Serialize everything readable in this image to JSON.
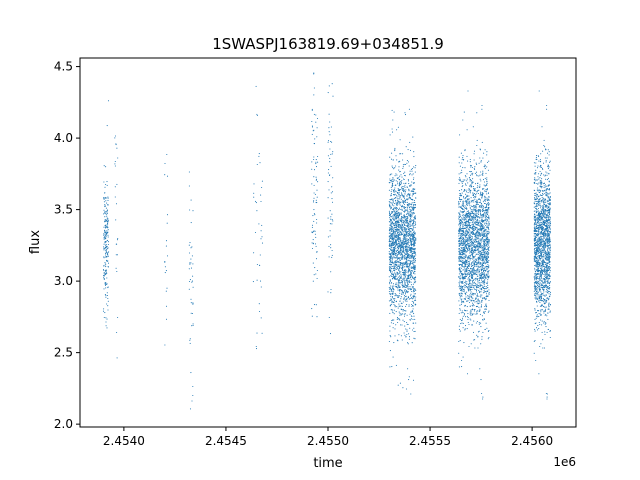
{
  "chart_data": {
    "type": "scatter",
    "title": "1SWASPJ163819.69+034851.9",
    "xlabel": "time",
    "ylabel": "flux",
    "x_offset_label": "1e6",
    "xlim": [
      2453785,
      2456215
    ],
    "ylim": [
      1.98,
      4.56
    ],
    "xticks": [
      2454000,
      2454500,
      2455000,
      2455500,
      2456000
    ],
    "xtick_labels": [
      "2.4540",
      "2.4545",
      "2.4550",
      "2.4555",
      "2.4560"
    ],
    "yticks": [
      2.0,
      2.5,
      3.0,
      3.5,
      4.0,
      4.5
    ],
    "ytick_labels": [
      "2.0",
      "2.5",
      "3.0",
      "3.5",
      "4.0",
      "4.5"
    ],
    "grid": false,
    "marker_color": "#1f77b4",
    "clusters": [
      {
        "x_start": 2453900,
        "x_end": 2453925,
        "y_center": 3.25,
        "y_spread": 0.22,
        "count": 220
      },
      {
        "x_start": 2453955,
        "x_end": 2453970,
        "y_center": 3.55,
        "y_spread": 0.45,
        "count": 25
      },
      {
        "x_start": 2454200,
        "x_end": 2454215,
        "y_center": 3.3,
        "y_spread": 0.45,
        "count": 20
      },
      {
        "x_start": 2454320,
        "x_end": 2454340,
        "y_center": 2.95,
        "y_spread": 0.35,
        "count": 45
      },
      {
        "x_start": 2454630,
        "x_end": 2454680,
        "y_center": 3.35,
        "y_spread": 0.45,
        "count": 40
      },
      {
        "x_start": 2454920,
        "x_end": 2454950,
        "y_center": 3.5,
        "y_spread": 0.45,
        "count": 90
      },
      {
        "x_start": 2455000,
        "x_end": 2455025,
        "y_center": 3.65,
        "y_spread": 0.4,
        "count": 60
      },
      {
        "x_start": 2455300,
        "x_end": 2455430,
        "y_center": 3.25,
        "y_spread": 0.26,
        "count": 2200
      },
      {
        "x_start": 2455640,
        "x_end": 2455790,
        "y_center": 3.25,
        "y_spread": 0.26,
        "count": 2400
      },
      {
        "x_start": 2456010,
        "x_end": 2456090,
        "y_center": 3.25,
        "y_spread": 0.26,
        "count": 1700
      }
    ]
  }
}
